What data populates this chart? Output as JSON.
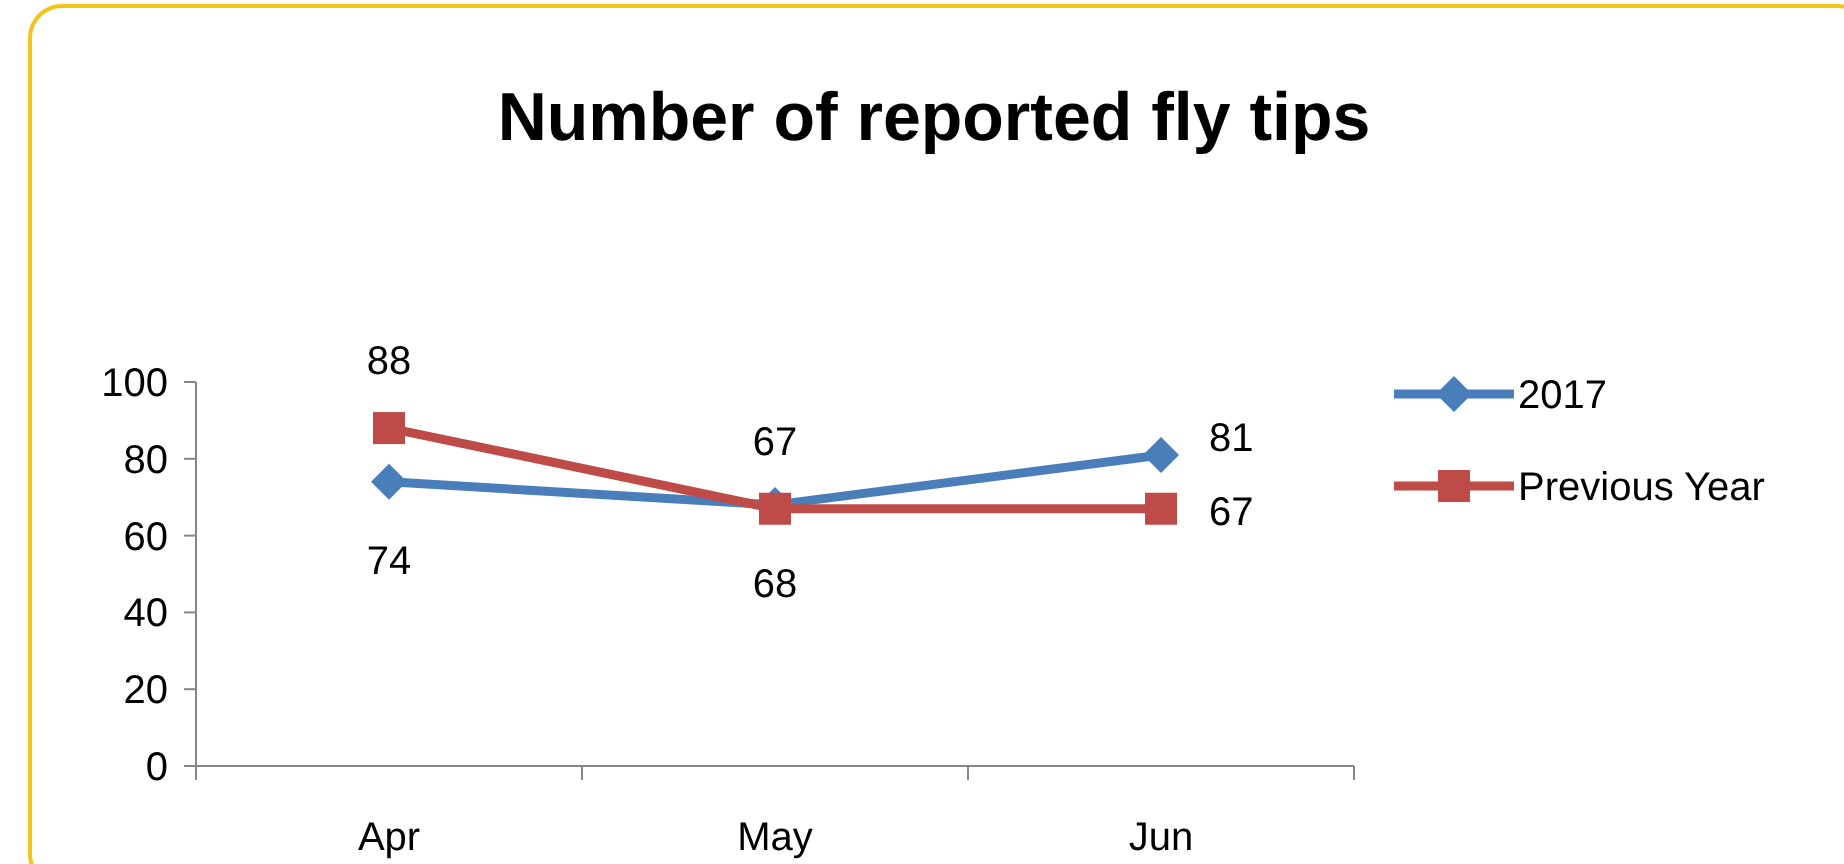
{
  "chart_data": {
    "type": "line",
    "title": "Number of reported fly tips",
    "categories": [
      "Apr",
      "May",
      "Jun"
    ],
    "series": [
      {
        "name": "2017",
        "color": "#4a7ebb",
        "values": [
          74,
          68,
          81
        ],
        "marker": "diamond"
      },
      {
        "name": "Previous Year",
        "color": "#be4b48",
        "values": [
          88,
          67,
          67
        ],
        "marker": "square"
      }
    ],
    "ylim": [
      0,
      100
    ],
    "yticks": [
      0,
      20,
      40,
      60,
      80,
      100
    ],
    "legend": "right",
    "data_labels": true,
    "line_style": "solid"
  }
}
